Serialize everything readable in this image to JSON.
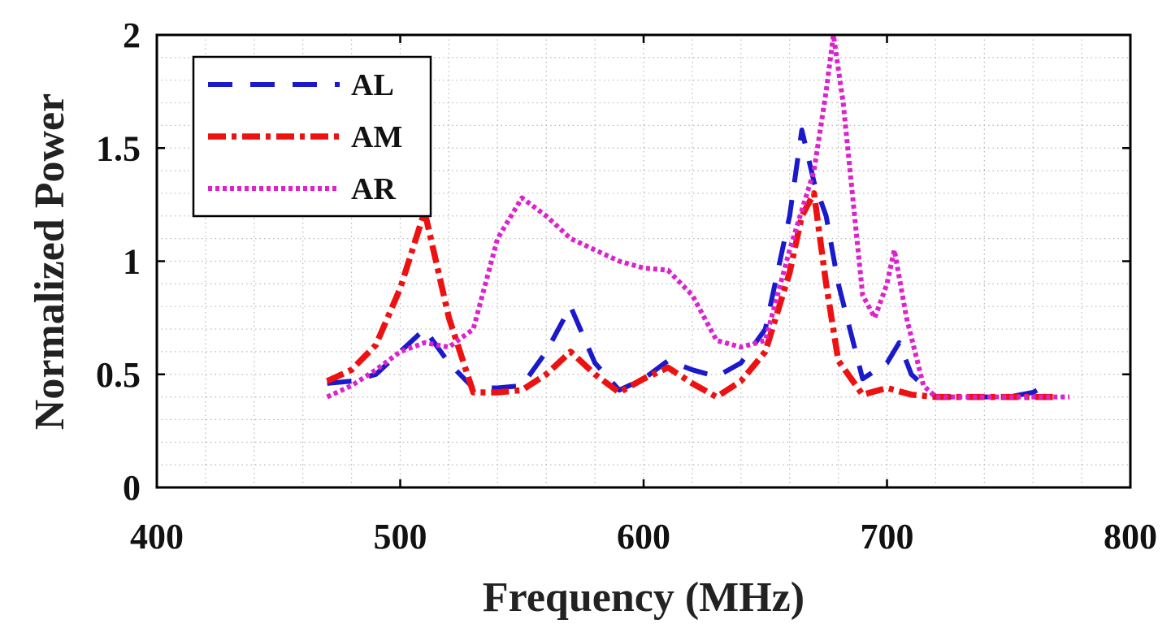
{
  "chart_data": {
    "type": "line",
    "title": "",
    "xlabel": "Frequency (MHz)",
    "ylabel": "Normalized Power",
    "xlim": [
      400,
      800
    ],
    "ylim": [
      0,
      2
    ],
    "xticks": [
      400,
      500,
      600,
      700,
      800
    ],
    "xtick_labels": [
      "400",
      "500",
      "600",
      "700",
      "800"
    ],
    "yticks": [
      0,
      0.5,
      1,
      1.5,
      2
    ],
    "ytick_labels": [
      "0",
      "0.5",
      "1",
      "1.5",
      "2"
    ],
    "grid": "minor dotted",
    "legend_position": "top-left",
    "series": [
      {
        "name": "AL",
        "color": "#1a1acc",
        "style": "dashed",
        "x": [
          470,
          480,
          490,
          500,
          510,
          520,
          530,
          540,
          550,
          560,
          570,
          580,
          590,
          600,
          610,
          620,
          630,
          640,
          650,
          660,
          665,
          670,
          675,
          680,
          690,
          700,
          705,
          710,
          720,
          730,
          740,
          750,
          760,
          765
        ],
        "y": [
          0.46,
          0.47,
          0.5,
          0.6,
          0.7,
          0.55,
          0.44,
          0.44,
          0.45,
          0.6,
          0.8,
          0.55,
          0.43,
          0.48,
          0.56,
          0.52,
          0.49,
          0.55,
          0.7,
          1.2,
          1.58,
          1.35,
          1.2,
          0.9,
          0.48,
          0.55,
          0.64,
          0.5,
          0.4,
          0.4,
          0.4,
          0.4,
          0.42,
          0.45
        ]
      },
      {
        "name": "AM",
        "color": "#ee1111",
        "style": "dash-dot",
        "x": [
          470,
          480,
          490,
          500,
          510,
          520,
          530,
          540,
          550,
          560,
          570,
          580,
          590,
          600,
          610,
          620,
          630,
          640,
          650,
          660,
          665,
          670,
          675,
          680,
          690,
          700,
          710,
          720,
          730,
          740,
          750,
          760,
          770
        ],
        "y": [
          0.47,
          0.52,
          0.63,
          0.88,
          1.22,
          0.75,
          0.42,
          0.42,
          0.43,
          0.5,
          0.6,
          0.5,
          0.42,
          0.48,
          0.53,
          0.46,
          0.4,
          0.47,
          0.6,
          0.95,
          1.2,
          1.3,
          0.9,
          0.56,
          0.41,
          0.44,
          0.41,
          0.4,
          0.4,
          0.4,
          0.4,
          0.4,
          0.4
        ]
      },
      {
        "name": "AR",
        "color": "#dd22cc",
        "style": "dotted",
        "x": [
          470,
          480,
          490,
          500,
          510,
          520,
          530,
          540,
          550,
          560,
          570,
          580,
          590,
          600,
          610,
          620,
          630,
          640,
          650,
          660,
          670,
          675,
          678,
          682,
          690,
          695,
          700,
          703,
          708,
          715,
          720,
          730,
          740,
          750,
          760,
          770,
          775
        ],
        "y": [
          0.4,
          0.45,
          0.52,
          0.6,
          0.64,
          0.62,
          0.7,
          1.1,
          1.28,
          1.2,
          1.1,
          1.05,
          1.0,
          0.97,
          0.96,
          0.85,
          0.65,
          0.62,
          0.65,
          1.05,
          1.4,
          1.75,
          2.0,
          1.7,
          0.85,
          0.75,
          0.9,
          1.05,
          0.75,
          0.45,
          0.4,
          0.4,
          0.4,
          0.4,
          0.4,
          0.4,
          0.4
        ]
      }
    ]
  }
}
